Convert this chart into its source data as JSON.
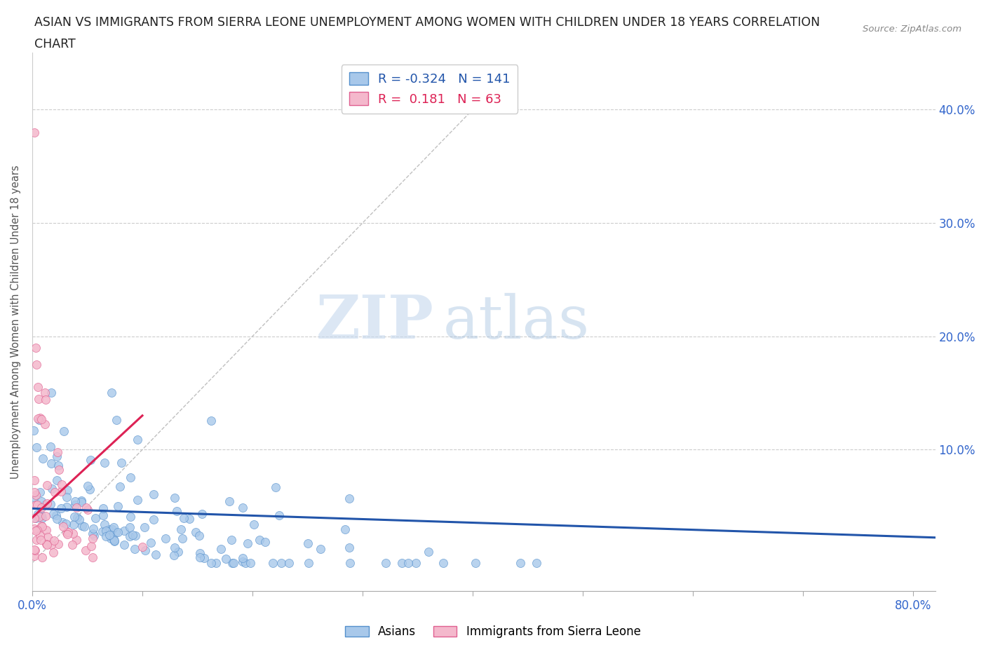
{
  "title_line1": "ASIAN VS IMMIGRANTS FROM SIERRA LEONE UNEMPLOYMENT AMONG WOMEN WITH CHILDREN UNDER 18 YEARS CORRELATION",
  "title_line2": "CHART",
  "source": "Source: ZipAtlas.com",
  "ylabel": "Unemployment Among Women with Children Under 18 years",
  "xlim": [
    0.0,
    0.82
  ],
  "ylim": [
    -0.025,
    0.45
  ],
  "yticks": [
    0.1,
    0.2,
    0.3,
    0.4
  ],
  "ytick_labels": [
    "10.0%",
    "20.0%",
    "30.0%",
    "40.0%"
  ],
  "xticks": [
    0.0,
    0.1,
    0.2,
    0.3,
    0.4,
    0.5,
    0.6,
    0.7,
    0.8
  ],
  "xtick_labels": [
    "0.0%",
    "",
    "",
    "",
    "",
    "",
    "",
    "",
    "80.0%"
  ],
  "asian_color": "#a8c8ea",
  "sierra_color": "#f4b8cc",
  "asian_edge": "#5590cc",
  "sierra_edge": "#e06090",
  "trend_asian_color": "#2255aa",
  "trend_sierra_color": "#dd2255",
  "R_asian": -0.324,
  "N_asian": 141,
  "R_sierra": 0.181,
  "N_sierra": 63,
  "legend_asian_label": "Asians",
  "legend_sierra_label": "Immigrants from Sierra Leone",
  "watermark_zip": "ZIP",
  "watermark_atlas": "atlas",
  "title_color": "#222222",
  "tick_color": "#3366cc",
  "grid_color": "#cccccc",
  "background_color": "#ffffff",
  "seed": 7
}
